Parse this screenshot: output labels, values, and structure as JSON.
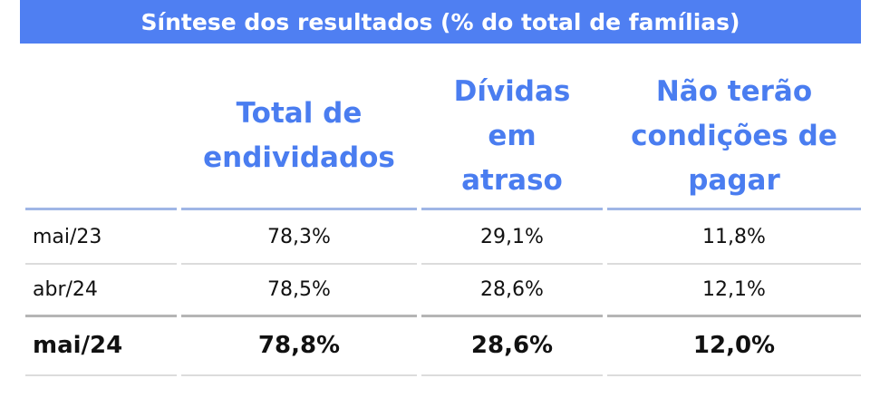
{
  "header": {
    "title": "Síntese dos resultados (% do total de famílias)"
  },
  "table": {
    "columns": [
      [
        "Total de",
        "endividados"
      ],
      [
        "Dívidas",
        "em",
        "atraso"
      ],
      [
        "Não terão",
        "condições de",
        "pagar"
      ]
    ],
    "rows": [
      [
        "mai/23",
        "78,3%",
        "29,1%",
        "11,8%"
      ],
      [
        "abr/24",
        "78,5%",
        "28,6%",
        "12,1%"
      ],
      [
        "mai/24",
        "78,8%",
        "28,6%",
        "12,0%"
      ]
    ]
  }
}
